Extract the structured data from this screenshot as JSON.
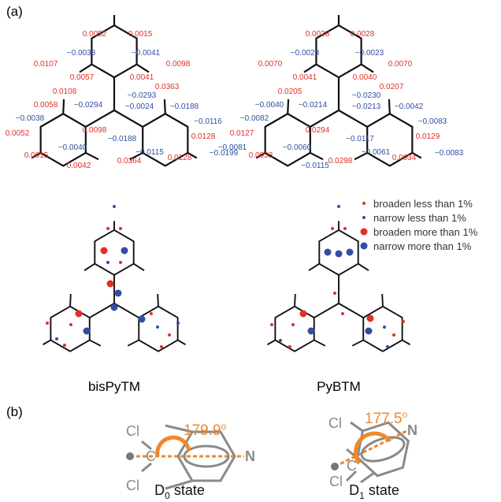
{
  "panel_labels": [
    "(a)",
    "(b)"
  ],
  "molecules": [
    {
      "name": "bisPyTM",
      "labels": [
        {
          "text": "0.0052",
          "color": "#e0302a"
        },
        {
          "text": "0.0015",
          "color": "#e0302a"
        },
        {
          "text": "−0.0038",
          "color": "#2f4fa0"
        },
        {
          "text": "−0.0041",
          "color": "#2f4fa0"
        },
        {
          "text": "0.0107",
          "color": "#e0302a"
        },
        {
          "text": "0.0098",
          "color": "#e0302a"
        },
        {
          "text": "0.0057",
          "color": "#e0302a"
        },
        {
          "text": "0.0041",
          "color": "#e0302a"
        },
        {
          "text": "0.0108",
          "color": "#e0302a"
        },
        {
          "text": "0.0363",
          "color": "#e0302a"
        },
        {
          "text": "−0.0293",
          "color": "#2f4fa0"
        },
        {
          "text": "0.0058",
          "color": "#e0302a"
        },
        {
          "text": "−0.0294",
          "color": "#2f4fa0"
        },
        {
          "text": "−0.0024",
          "color": "#2f4fa0"
        },
        {
          "text": "−0.0188",
          "color": "#2f4fa0"
        },
        {
          "text": "−0.0038",
          "color": "#2f4fa0"
        },
        {
          "text": "−0.0116",
          "color": "#2f4fa0"
        },
        {
          "text": "0.0098",
          "color": "#e0302a"
        },
        {
          "text": "0.0052",
          "color": "#e0302a"
        },
        {
          "text": "−0.0188",
          "color": "#2f4fa0"
        },
        {
          "text": "0.0128",
          "color": "#e0302a"
        },
        {
          "text": "−0.0040",
          "color": "#2f4fa0"
        },
        {
          "text": "−0.0115",
          "color": "#2f4fa0"
        },
        {
          "text": "0.0015",
          "color": "#e0302a"
        },
        {
          "text": "0.0128",
          "color": "#e0302a"
        },
        {
          "text": "−0.0199",
          "color": "#2f4fa0"
        },
        {
          "text": "0.0364",
          "color": "#e0302a"
        },
        {
          "text": "0.0042",
          "color": "#e0302a"
        }
      ]
    },
    {
      "name": "PyBTM",
      "labels": [
        {
          "text": "0.0028",
          "color": "#e0302a"
        },
        {
          "text": "0.0028",
          "color": "#e0302a"
        },
        {
          "text": "−0.0023",
          "color": "#2f4fa0"
        },
        {
          "text": "−0.0023",
          "color": "#2f4fa0"
        },
        {
          "text": "0.0070",
          "color": "#e0302a"
        },
        {
          "text": "0.0070",
          "color": "#e0302a"
        },
        {
          "text": "0.0041",
          "color": "#e0302a"
        },
        {
          "text": "0.0040",
          "color": "#e0302a"
        },
        {
          "text": "0.0205",
          "color": "#e0302a"
        },
        {
          "text": "0.0207",
          "color": "#e0302a"
        },
        {
          "text": "−0.0230",
          "color": "#2f4fa0"
        },
        {
          "text": "−0.0040",
          "color": "#2f4fa0"
        },
        {
          "text": "−0.0214",
          "color": "#2f4fa0"
        },
        {
          "text": "−0.0213",
          "color": "#2f4fa0"
        },
        {
          "text": "−0.0042",
          "color": "#2f4fa0"
        },
        {
          "text": "−0.0082",
          "color": "#2f4fa0"
        },
        {
          "text": "−0.0083",
          "color": "#2f4fa0"
        },
        {
          "text": "0.0294",
          "color": "#e0302a"
        },
        {
          "text": "0.0127",
          "color": "#e0302a"
        },
        {
          "text": "−0.0117",
          "color": "#2f4fa0"
        },
        {
          "text": "0.0129",
          "color": "#e0302a"
        },
        {
          "text": "−0.0081",
          "color": "#2f4fa0"
        },
        {
          "text": "−0.0060",
          "color": "#2f4fa0"
        },
        {
          "text": "−0.0061",
          "color": "#2f4fa0"
        },
        {
          "text": "0.0033",
          "color": "#e0302a"
        },
        {
          "text": "0.0034",
          "color": "#e0302a"
        },
        {
          "text": "−0.0083",
          "color": "#2f4fa0"
        },
        {
          "text": "−0.0115",
          "color": "#2f4fa0"
        },
        {
          "text": "0.0298",
          "color": "#e0302a"
        }
      ]
    }
  ],
  "legend": [
    {
      "label": "broaden less than 1%",
      "color": "#e0302a"
    },
    {
      "label": "narrow less than 1%",
      "color": "#2f4fa0"
    },
    {
      "label": "broaden more than 1%",
      "color": "#e0302a"
    },
    {
      "label": "narrow more than 1%",
      "color": "#2f4fa0"
    }
  ],
  "states": [
    {
      "angle": "179.9",
      "angle_sup": "o",
      "atom_c": "C",
      "atom_n": "N",
      "cl_top": "Cl",
      "cl_bottom": "Cl",
      "state": "D",
      "state_sub": "0",
      "state_rest": " state"
    },
    {
      "angle": "177.5",
      "angle_sup": "o",
      "atom_c": "C",
      "atom_n": "N",
      "cl_top": "Cl",
      "cl_bottom": "Cl",
      "state": "D",
      "state_sub": "1",
      "state_rest": " state"
    }
  ]
}
